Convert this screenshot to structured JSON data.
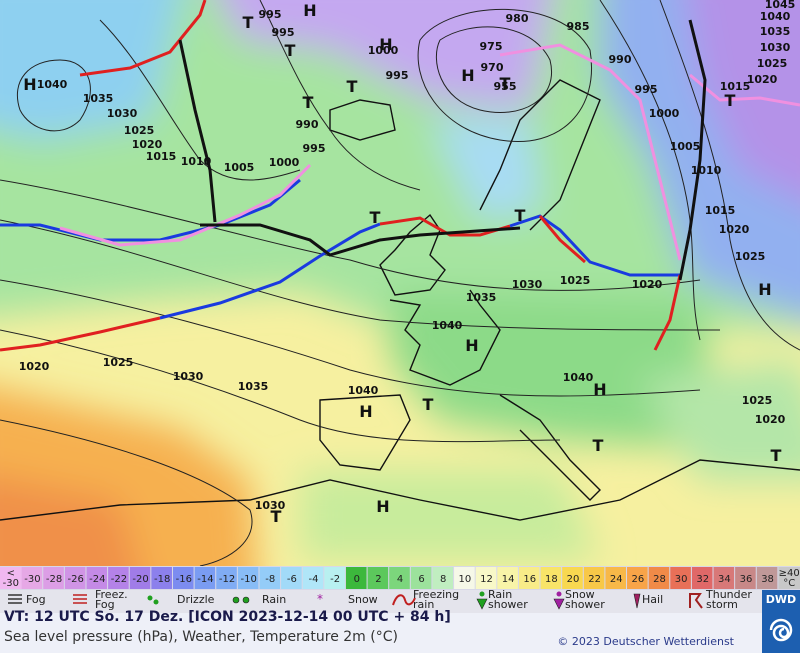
{
  "map": {
    "pressure_labels": [
      995,
      995,
      1000,
      995,
      980,
      985,
      975,
      970,
      955,
      990,
      995,
      1000,
      1005,
      1010,
      1015,
      1020,
      1025,
      1045,
      1040,
      1035,
      1030,
      1025,
      1020,
      1015,
      1040,
      1035,
      1030,
      1025,
      1020,
      1015,
      1010,
      1005,
      1000,
      990,
      995,
      1035,
      1030,
      1025,
      1020,
      1040,
      1040,
      1040,
      1035,
      1030,
      1025,
      1020,
      1030,
      1025,
      1020
    ],
    "pressure_centers": [
      "H",
      "T",
      "T",
      "H",
      "H",
      "T",
      "T",
      "H",
      "T",
      "T",
      "T",
      "T",
      "H",
      "H",
      "H",
      "T",
      "H",
      "T",
      "H",
      "T",
      "T"
    ]
  },
  "temperature_scale": {
    "first_label": [
      "<",
      "-30"
    ],
    "items": [
      {
        "label": "-30",
        "color": "#e6a8e6"
      },
      {
        "label": "-28",
        "color": "#dc9ee6"
      },
      {
        "label": "-26",
        "color": "#d094e6"
      },
      {
        "label": "-24",
        "color": "#c48ae6"
      },
      {
        "label": "-22",
        "color": "#b482e8"
      },
      {
        "label": "-20",
        "color": "#a07ce8"
      },
      {
        "label": "-18",
        "color": "#8c80ec"
      },
      {
        "label": "-16",
        "color": "#7c8cf0"
      },
      {
        "label": "-14",
        "color": "#7a9cf2"
      },
      {
        "label": "-12",
        "color": "#80acf4"
      },
      {
        "label": "-10",
        "color": "#88bcf6"
      },
      {
        "label": "-8",
        "color": "#94ccf8"
      },
      {
        "label": "-6",
        "color": "#a2daf8"
      },
      {
        "label": "-4",
        "color": "#b0e6f8"
      },
      {
        "label": "-2",
        "color": "#b8f0f0"
      },
      {
        "label": "0",
        "color": "#3cb83c"
      },
      {
        "label": "2",
        "color": "#5cc85c"
      },
      {
        "label": "4",
        "color": "#7cd67c"
      },
      {
        "label": "6",
        "color": "#9ce29c"
      },
      {
        "label": "8",
        "color": "#c0eec0"
      },
      {
        "label": "10",
        "color": "#f6f8e8"
      },
      {
        "label": "12",
        "color": "#f8f8c8"
      },
      {
        "label": "14",
        "color": "#f8f4a8"
      },
      {
        "label": "16",
        "color": "#f8ec88"
      },
      {
        "label": "18",
        "color": "#f8e468"
      },
      {
        "label": "20",
        "color": "#f8d850"
      },
      {
        "label": "22",
        "color": "#f8c848"
      },
      {
        "label": "24",
        "color": "#f8b848"
      },
      {
        "label": "26",
        "color": "#f8a448"
      },
      {
        "label": "28",
        "color": "#f08a48"
      },
      {
        "label": "30",
        "color": "#e87058"
      },
      {
        "label": "32",
        "color": "#e06868"
      },
      {
        "label": "34",
        "color": "#d87878"
      },
      {
        "label": "36",
        "color": "#c88888"
      },
      {
        "label": "38",
        "color": "#c09898"
      }
    ],
    "last_label": [
      "≥40",
      "°C"
    ]
  },
  "legend": [
    {
      "label": [
        "Fog"
      ]
    },
    {
      "label": [
        "Freez.",
        "Fog"
      ]
    },
    {
      "label": [
        "Drizzle"
      ]
    },
    {
      "label": [
        "Rain"
      ]
    },
    {
      "label": [
        "Snow"
      ]
    },
    {
      "label": [
        "Freezing",
        "rain"
      ]
    },
    {
      "label": [
        "Rain",
        "shower"
      ]
    },
    {
      "label": [
        "Snow",
        "shower"
      ]
    },
    {
      "label": [
        "Hail"
      ]
    },
    {
      "label": [
        "Thunder",
        "storm"
      ]
    }
  ],
  "footer": {
    "valid_time": "VT: 12 UTC So.  17 Dez. [ICON 2023-12-14  00 UTC + 84 h]",
    "description": "Sea level pressure (hPa), Weather, Temperature 2m (°C)",
    "copyright": "© 2023 Deutscher Wetterdienst",
    "logo": "DWD"
  }
}
